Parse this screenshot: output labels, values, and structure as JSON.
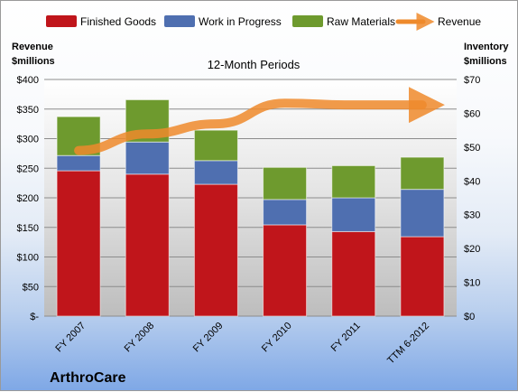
{
  "chart_data": {
    "type": "bar",
    "stacked": true,
    "title": "12-Month Periods",
    "company": "ArthroCare",
    "categories": [
      "FY 2007",
      "FY 2008",
      "FY 2009",
      "FY 2010",
      "FY 2011",
      "TTM 6-2012"
    ],
    "series": [
      {
        "name": "Finished Goods",
        "color": "#c0151b",
        "values": [
          43,
          42,
          39,
          27,
          25,
          23.5
        ]
      },
      {
        "name": "Work in Progress",
        "color": "#4f6fb0",
        "values": [
          4.5,
          9.5,
          7,
          7.5,
          10,
          14
        ]
      },
      {
        "name": "Raw Materials",
        "color": "#6e9a2e",
        "values": [
          11.5,
          12.5,
          9,
          9.5,
          9.5,
          9.5
        ]
      }
    ],
    "line_series": {
      "name": "Revenue",
      "color": "#ee8a2c",
      "values": [
        280,
        308,
        325,
        360,
        357,
        357
      ]
    },
    "left_axis": {
      "label_line1": "Revenue",
      "label_line2": "$millions",
      "range": [
        0,
        400
      ],
      "ticks": [
        "$-",
        "$50",
        "$100",
        "$150",
        "$200",
        "$250",
        "$300",
        "$350",
        "$400"
      ]
    },
    "right_axis": {
      "label_line1": "Inventory",
      "label_line2": "$millions",
      "range": [
        0,
        70
      ],
      "ticks": [
        "$0",
        "$10",
        "$20",
        "$30",
        "$40",
        "$50",
        "$60",
        "$70"
      ]
    },
    "legend_position": "top",
    "grid": true
  }
}
